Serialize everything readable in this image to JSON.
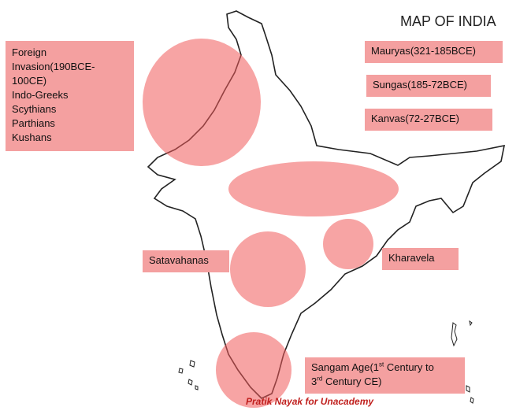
{
  "title": "MAP OF INDIA",
  "foreign_invasion": {
    "lines": [
      "Foreign",
      "Invasion(190BCE-",
      "100CE)",
      "Indo-Greeks",
      "Scythians",
      "Parthians",
      "Kushans"
    ]
  },
  "dynasties": [
    "Mauryas(321-185BCE)",
    "Sungas(185-72BCE)",
    "Kanvas(72-27BCE)"
  ],
  "satavahanas": "Satavahanas",
  "kharavela": "Kharavela",
  "sangam": {
    "parts": [
      "Sangam Age(1",
      "st",
      " Century to",
      "3",
      "rd",
      " Century CE)"
    ]
  },
  "credit": "Pratik Nayak for Unacademy"
}
